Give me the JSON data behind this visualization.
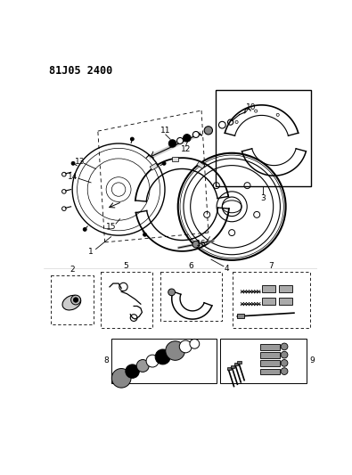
{
  "title": "81J05 2400",
  "bg": "#ffffff",
  "fw": 3.95,
  "fh": 5.33,
  "dpi": 100
}
